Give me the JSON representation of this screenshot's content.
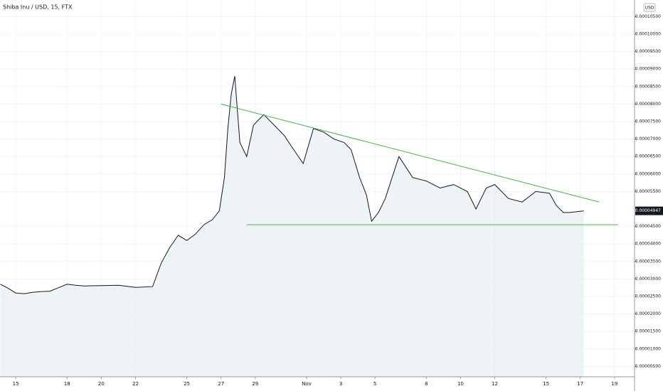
{
  "chart_data": {
    "type": "line",
    "title": "Shiba Inu / USD, 15, FTX",
    "currency_button": "USD",
    "x": [
      -0.9,
      -0.5,
      0,
      0.5,
      1,
      1.5,
      2,
      2.5,
      3,
      3.5,
      4,
      5,
      6,
      7,
      8,
      8.5,
      9,
      9.5,
      10,
      10.5,
      11,
      11.5,
      11.9,
      12.2,
      12.4,
      12.6,
      12.8,
      13.1,
      13.5,
      13.9,
      14.5,
      15.1,
      15.7,
      16.1,
      16.8,
      17.4,
      18,
      18.6,
      19.2,
      19.6,
      20.1,
      20.5,
      20.8,
      21.2,
      21.6,
      22.4,
      23.2,
      24,
      24.8,
      25.6,
      26.4,
      26.9,
      27.5,
      28,
      28.8,
      29.6,
      30.4,
      31.2,
      31.6,
      32,
      32.4,
      33.2
    ],
    "series": [
      {
        "name": "Shiba Inu / USD",
        "color": "#131722",
        "values": [
          2.85e-05,
          2.75e-05,
          2.6e-05,
          2.58e-05,
          2.62e-05,
          2.64e-05,
          2.65e-05,
          2.75e-05,
          2.85e-05,
          2.82e-05,
          2.8e-05,
          2.81e-05,
          2.82e-05,
          2.76e-05,
          2.78e-05,
          3.45e-05,
          3.9e-05,
          4.25e-05,
          4.1e-05,
          4.28e-05,
          4.55e-05,
          4.7e-05,
          4.95e-05,
          5.9e-05,
          7.3e-05,
          8.3e-05,
          8.8e-05,
          6.9e-05,
          6.5e-05,
          7.4e-05,
          7.7e-05,
          7.4e-05,
          7.1e-05,
          6.8e-05,
          6.3e-05,
          7.3e-05,
          7.2e-05,
          7e-05,
          6.9e-05,
          6.7e-05,
          5.9e-05,
          5.4e-05,
          4.65e-05,
          4.9e-05,
          5.3e-05,
          6.5e-05,
          5.9e-05,
          5.8e-05,
          5.6e-05,
          5.7e-05,
          5.5e-05,
          5e-05,
          5.6e-05,
          5.7e-05,
          5.3e-05,
          5.2e-05,
          5.5e-05,
          5.45e-05,
          5.1e-05,
          4.9e-05,
          4.9e-05,
          4.947e-05
        ]
      }
    ],
    "trend_lines": [
      {
        "color": "#4caf50",
        "x": [
          12.0,
          34.1
        ],
        "values": [
          8e-05,
          5.2e-05
        ]
      },
      {
        "color": "#4caf50",
        "x": [
          13.5,
          35.2
        ],
        "values": [
          4.55e-05,
          4.55e-05
        ]
      }
    ],
    "last_price": {
      "value": 4.947e-05,
      "label": "0.00004947"
    },
    "xlim": [
      -0.92,
      36.17
    ],
    "xticks": [
      {
        "value": 0,
        "label": "15"
      },
      {
        "value": 3,
        "label": "18"
      },
      {
        "value": 5,
        "label": "20"
      },
      {
        "value": 7,
        "label": "22"
      },
      {
        "value": 10,
        "label": "25"
      },
      {
        "value": 12,
        "label": "27"
      },
      {
        "value": 14,
        "label": "29"
      },
      {
        "value": 17,
        "label": "Nov"
      },
      {
        "value": 19,
        "label": "3"
      },
      {
        "value": 21,
        "label": "5"
      },
      {
        "value": 24,
        "label": "8"
      },
      {
        "value": 26,
        "label": "10"
      },
      {
        "value": 28,
        "label": "12"
      },
      {
        "value": 31,
        "label": "15"
      },
      {
        "value": 33,
        "label": "17"
      },
      {
        "value": 35,
        "label": "19"
      }
    ],
    "ylim": [
      2.03e-06,
      0.00010976
    ],
    "yticks": [
      {
        "value": 5e-06,
        "label": "0.00000500"
      },
      {
        "value": 1e-05,
        "label": "0.00001000"
      },
      {
        "value": 1.5e-05,
        "label": "0.00001500"
      },
      {
        "value": 2e-05,
        "label": "0.00002000"
      },
      {
        "value": 2.5e-05,
        "label": "0.00002500"
      },
      {
        "value": 3e-05,
        "label": "0.00003000"
      },
      {
        "value": 3.5e-05,
        "label": "0.00003500"
      },
      {
        "value": 4e-05,
        "label": "0.00004000"
      },
      {
        "value": 4.5e-05,
        "label": "0.00004500"
      },
      {
        "value": 5.5e-05,
        "label": "0.00005500"
      },
      {
        "value": 6e-05,
        "label": "0.00006000"
      },
      {
        "value": 6.5e-05,
        "label": "0.00006500"
      },
      {
        "value": 7e-05,
        "label": "0.00007000"
      },
      {
        "value": 7.5e-05,
        "label": "0.00007500"
      },
      {
        "value": 8e-05,
        "label": "0.00008000"
      },
      {
        "value": 8.5e-05,
        "label": "0.00008500"
      },
      {
        "value": 9e-05,
        "label": "0.00009000"
      },
      {
        "value": 9.5e-05,
        "label": "0.00009500"
      },
      {
        "value": 0.0001,
        "label": "0.00010000"
      },
      {
        "value": 0.000105,
        "label": "0.00010500"
      }
    ],
    "grid": true
  }
}
